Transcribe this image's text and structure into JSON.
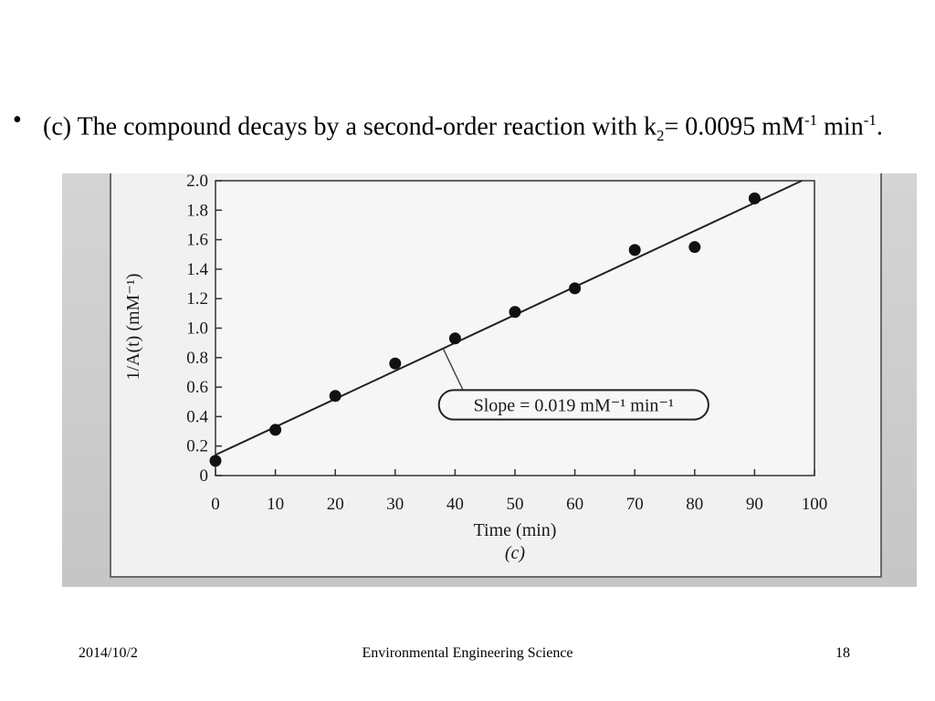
{
  "slide": {
    "bullet": "•",
    "text_before": "(c) The compound decays by a second-order reaction with k",
    "k_sub": "2",
    "text_eq": "= 0.0095 mM",
    "sup1": "-1",
    "text_min": " min",
    "sup2": "-1",
    "text_end": "."
  },
  "chart_data": {
    "type": "scatter",
    "title": "",
    "xlabel": "Time (min)",
    "ylabel": "1/A(t) (mM⁻¹)",
    "caption": "(c)",
    "xlim": [
      0,
      100
    ],
    "ylim": [
      0,
      2.0
    ],
    "x_ticks": [
      "0",
      "10",
      "20",
      "30",
      "40",
      "50",
      "60",
      "70",
      "80",
      "90",
      "100"
    ],
    "y_ticks": [
      "0",
      "0.2",
      "0.4",
      "0.6",
      "0.8",
      "1.0",
      "1.2",
      "1.4",
      "1.6",
      "1.8",
      "2.0"
    ],
    "points": [
      {
        "x": 0,
        "y": 0.1
      },
      {
        "x": 10,
        "y": 0.31
      },
      {
        "x": 20,
        "y": 0.54
      },
      {
        "x": 30,
        "y": 0.76
      },
      {
        "x": 40,
        "y": 0.93
      },
      {
        "x": 50,
        "y": 1.11
      },
      {
        "x": 60,
        "y": 1.27
      },
      {
        "x": 70,
        "y": 1.53
      },
      {
        "x": 80,
        "y": 1.55
      },
      {
        "x": 90,
        "y": 1.88
      }
    ],
    "fit_line": {
      "intercept": 0.14,
      "slope": 0.019
    },
    "annotation": "Slope = 0.019 mM⁻¹ min⁻¹",
    "grid": false
  },
  "footer": {
    "date": "2014/10/2",
    "title": "Environmental Engineering Science",
    "page": "18"
  }
}
